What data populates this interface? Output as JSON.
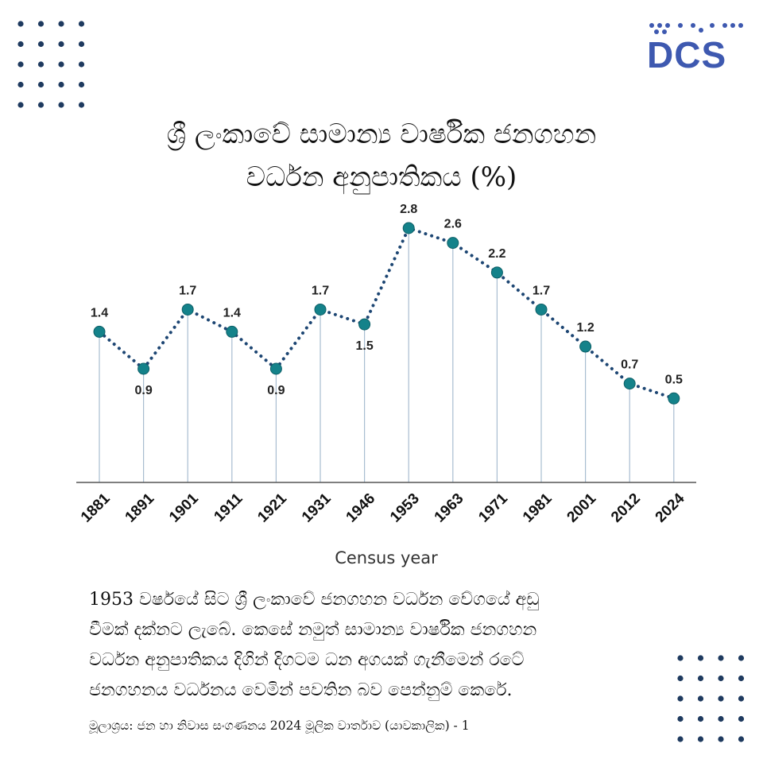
{
  "brand": {
    "logo_text": "DCS",
    "logo_color": "#3e59b0",
    "dot_color": "#1e3a5f"
  },
  "title": {
    "line1": "ශ්‍රී ලංකාවේ සාමාන්‍ය වාර්ෂික ජනගහන",
    "line2": "වර්ධන අනුපාතිකය (%)"
  },
  "chart_data": {
    "type": "line",
    "title": "ශ්‍රී ලංකාවේ සාමාන්‍ය වාර්ෂික ජනගහන වර්ධන අනුපාතිකය (%)",
    "xlabel": "Census year",
    "ylabel": "",
    "categories": [
      "1881",
      "1891",
      "1901",
      "1911",
      "1921",
      "1931",
      "1946",
      "1953",
      "1963",
      "1971",
      "1981",
      "2001",
      "2012",
      "2024"
    ],
    "values": [
      1.4,
      0.9,
      1.7,
      1.4,
      0.9,
      1.7,
      1.5,
      2.8,
      2.6,
      2.2,
      1.7,
      1.2,
      0.7,
      0.5
    ],
    "label_position": [
      "above",
      "below",
      "above",
      "above",
      "below",
      "above",
      "below",
      "above",
      "above",
      "above",
      "above",
      "above",
      "above",
      "above"
    ],
    "ylim": [
      0,
      2.8
    ],
    "grid": false,
    "legend": "none",
    "line_style": "dotted",
    "line_color": "#1d4673",
    "marker_color": "#14828a",
    "drop_line_color": "#a8bdd0"
  },
  "body": {
    "line1": "1953 වර්ෂයේ සිට ශ්‍රී ලංකාවේ ජනගහන වර්ධන වේගයේ අඩු",
    "line2": "වීමක් දක්නට ලැබේ. කෙසේ නමුත් සාමාන්‍ය වාර්ෂික ජනගහන",
    "line3": "වර්ධන අනුපාතිකය දිගින් දිගටම ධන අගයක් ගැනීමෙන් රටේ",
    "line4": "ජනගහනය වර්ධනය වෙමින් පවතින බව පෙන්නුම් කෙරේ."
  },
  "source": "මූලාශ්‍රය: ජන හා නිවාස සංගණනය 2024 මූලික වාර්තාව (යාවකාලික) - 1"
}
